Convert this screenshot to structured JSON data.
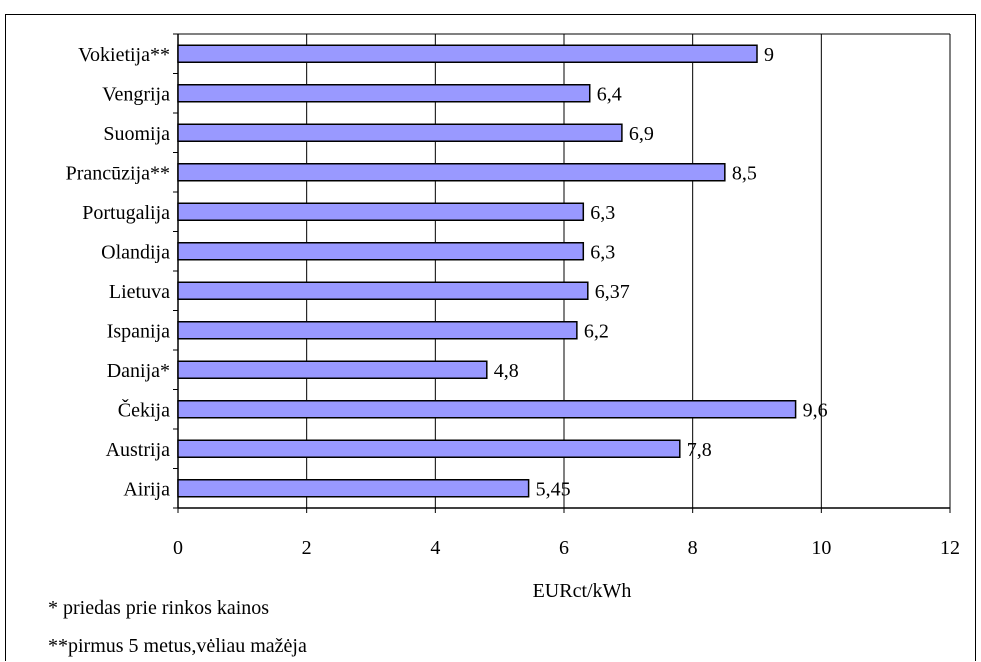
{
  "chart_data": {
    "type": "bar",
    "orientation": "horizontal",
    "categories": [
      "Vokietija**",
      "Vengrija",
      "Suomija",
      "Prancūzija**",
      "Portugalija",
      "Olandija",
      "Lietuva",
      "Ispanija",
      "Danija*",
      "Čekija",
      "Austrija",
      "Airija"
    ],
    "values": [
      9,
      6.4,
      6.9,
      8.5,
      6.3,
      6.3,
      6.37,
      6.2,
      4.8,
      9.6,
      7.8,
      5.45
    ],
    "data_labels": [
      "9",
      "6,4",
      "6,9",
      "8,5",
      "6,3",
      "6,3",
      "6,37",
      "6,2",
      "4,8",
      "9,6",
      "7,8",
      "5,45"
    ],
    "xlabel": "EURct/kWh",
    "xlim": [
      0,
      12
    ],
    "xticks": [
      "0",
      "2",
      "4",
      "6",
      "8",
      "10",
      "12"
    ],
    "grid": "vertical",
    "bar_color": "#9999ff",
    "legend": "none"
  },
  "notes": {
    "note1": "* priedas prie rinkos kainos",
    "note2": "**pirmus 5 metus,vėliau mažėja"
  }
}
